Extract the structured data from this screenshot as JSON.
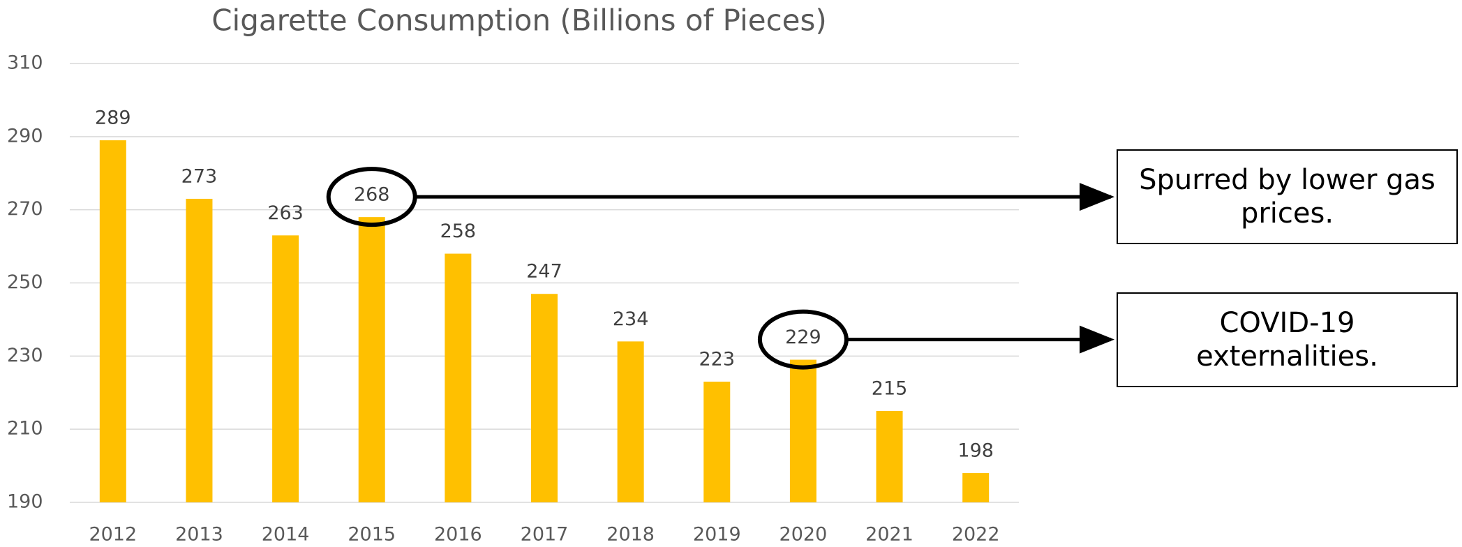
{
  "chart_data": {
    "type": "bar",
    "title": "Cigarette Consumption (Billions of Pieces)",
    "categories": [
      "2012",
      "2013",
      "2014",
      "2015",
      "2016",
      "2017",
      "2018",
      "2019",
      "2020",
      "2021",
      "2022"
    ],
    "values": [
      289,
      273,
      263,
      268,
      258,
      247,
      234,
      223,
      229,
      215,
      198
    ],
    "color": "#ffc000",
    "ylim": [
      190,
      310
    ],
    "yticks": [
      190,
      210,
      230,
      250,
      270,
      290,
      310
    ],
    "grid": true,
    "annotations": [
      {
        "text": "Spurred by lower gas prices.",
        "category": "2015"
      },
      {
        "text": "COVID-19 externalities.",
        "category": "2020"
      }
    ]
  }
}
